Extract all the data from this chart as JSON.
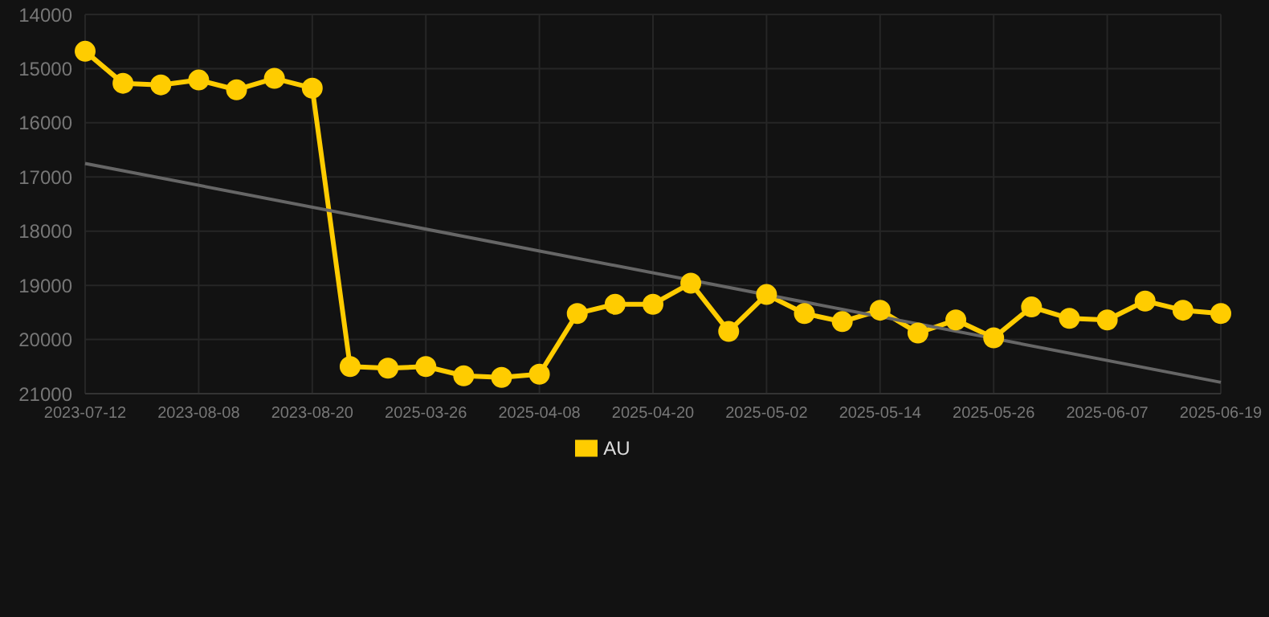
{
  "chart_data": {
    "type": "line",
    "categories": [
      "2023-07-12",
      null,
      null,
      "2023-08-08",
      null,
      null,
      "2023-08-20",
      null,
      null,
      "2025-03-26",
      null,
      null,
      "2025-04-08",
      null,
      null,
      "2025-04-20",
      null,
      null,
      "2025-05-02",
      null,
      null,
      "2025-05-14",
      null,
      null,
      "2025-05-26",
      null,
      null,
      "2025-06-07",
      null,
      null,
      "2025-06-19"
    ],
    "series": [
      {
        "name": "AU",
        "color": "#ffcc00",
        "marker": "circle",
        "values": [
          14680,
          15270,
          15300,
          15210,
          15390,
          15180,
          15360,
          20500,
          20530,
          20500,
          20670,
          20700,
          20640,
          19520,
          19350,
          19350,
          18960,
          19850,
          19170,
          19520,
          19670,
          19460,
          19880,
          19640,
          19970,
          19400,
          19610,
          19640,
          19290,
          19460,
          19520
        ]
      },
      {
        "type": "line",
        "color": "#666666",
        "marker": "none",
        "values": [
          16750,
          null,
          null,
          null,
          null,
          null,
          null,
          null,
          null,
          null,
          null,
          null,
          null,
          null,
          null,
          null,
          null,
          null,
          null,
          null,
          null,
          null,
          null,
          null,
          null,
          null,
          null,
          null,
          null,
          null,
          20790
        ]
      }
    ],
    "ylim": [
      21000,
      14000
    ],
    "yticks": [
      14000,
      15000,
      16000,
      17000,
      18000,
      19000,
      20000,
      21000
    ],
    "grid": true,
    "legend": "bottom"
  }
}
